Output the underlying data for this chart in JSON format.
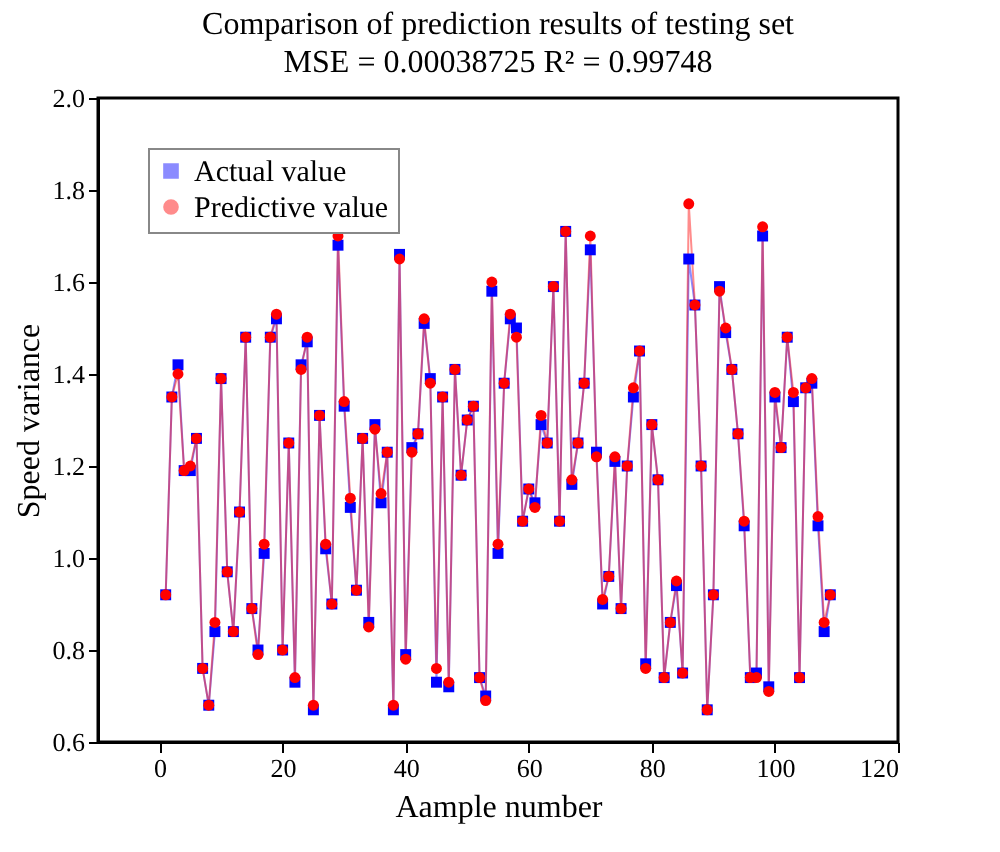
{
  "chart_data": {
    "type": "line",
    "title": "Comparison of prediction results of testing set",
    "subtitle": "MSE = 0.00038725 R² = 0.99748",
    "xlabel": "Aample number",
    "ylabel": "Speed variance",
    "x": [
      1,
      2,
      3,
      4,
      5,
      6,
      7,
      8,
      9,
      10,
      11,
      12,
      13,
      14,
      15,
      16,
      17,
      18,
      19,
      20,
      21,
      22,
      23,
      24,
      25,
      26,
      27,
      28,
      29,
      30,
      31,
      32,
      33,
      34,
      35,
      36,
      37,
      38,
      39,
      40,
      41,
      42,
      43,
      44,
      45,
      46,
      47,
      48,
      49,
      50,
      51,
      52,
      53,
      54,
      55,
      56,
      57,
      58,
      59,
      60,
      61,
      62,
      63,
      64,
      65,
      66,
      67,
      68,
      69,
      70,
      71,
      72,
      73,
      74,
      75,
      76,
      77,
      78,
      79,
      80,
      81,
      82,
      83,
      84,
      85,
      86,
      87,
      88,
      89,
      90,
      91,
      92,
      93,
      94,
      95,
      96,
      97,
      98,
      99,
      100,
      101,
      102,
      103,
      104,
      105,
      106,
      107,
      108,
      109
    ],
    "series": [
      {
        "name": "Actual value",
        "color": "#0000ff",
        "marker": "square",
        "values": [
          0.92,
          1.35,
          1.42,
          1.19,
          1.19,
          1.26,
          0.76,
          0.68,
          0.84,
          1.39,
          0.97,
          0.84,
          1.1,
          1.48,
          0.89,
          0.8,
          1.01,
          1.48,
          1.52,
          0.8,
          1.25,
          0.73,
          1.42,
          1.47,
          0.67,
          1.31,
          1.02,
          0.9,
          1.68,
          1.33,
          1.11,
          0.93,
          1.26,
          0.86,
          1.29,
          1.12,
          1.23,
          0.67,
          1.66,
          0.79,
          1.24,
          1.27,
          1.51,
          1.39,
          0.73,
          1.35,
          0.72,
          1.41,
          1.18,
          1.3,
          1.33,
          0.74,
          0.7,
          1.58,
          1.01,
          1.38,
          1.52,
          1.5,
          1.08,
          1.15,
          1.12,
          1.29,
          1.25,
          1.59,
          1.08,
          1.71,
          1.16,
          1.25,
          1.38,
          1.67,
          1.23,
          0.9,
          0.96,
          1.21,
          0.89,
          1.2,
          1.35,
          1.45,
          0.77,
          1.29,
          1.17,
          0.74,
          0.86,
          0.94,
          0.75,
          1.65,
          1.55,
          1.2,
          0.67,
          0.92,
          1.59,
          1.49,
          1.41,
          1.27,
          1.07,
          0.74,
          0.75,
          1.7,
          0.72,
          1.35,
          1.24,
          1.48,
          1.34,
          0.74,
          1.37,
          1.38,
          1.07,
          0.84,
          0.92
        ]
      },
      {
        "name": "Predictive value",
        "color": "#ff0000",
        "marker": "circle",
        "values": [
          0.92,
          1.35,
          1.4,
          1.19,
          1.2,
          1.26,
          0.76,
          0.68,
          0.86,
          1.39,
          0.97,
          0.84,
          1.1,
          1.48,
          0.89,
          0.79,
          1.03,
          1.48,
          1.53,
          0.8,
          1.25,
          0.74,
          1.41,
          1.48,
          0.68,
          1.31,
          1.03,
          0.9,
          1.7,
          1.34,
          1.13,
          0.93,
          1.26,
          0.85,
          1.28,
          1.14,
          1.23,
          0.68,
          1.65,
          0.78,
          1.23,
          1.27,
          1.52,
          1.38,
          0.76,
          1.35,
          0.73,
          1.41,
          1.18,
          1.3,
          1.33,
          0.74,
          0.69,
          1.6,
          1.03,
          1.38,
          1.53,
          1.48,
          1.08,
          1.15,
          1.11,
          1.31,
          1.25,
          1.59,
          1.08,
          1.71,
          1.17,
          1.25,
          1.38,
          1.7,
          1.22,
          0.91,
          0.96,
          1.22,
          0.89,
          1.2,
          1.37,
          1.45,
          0.76,
          1.29,
          1.17,
          0.74,
          0.86,
          0.95,
          0.75,
          1.77,
          1.55,
          1.2,
          0.67,
          0.92,
          1.58,
          1.5,
          1.41,
          1.27,
          1.08,
          0.74,
          0.74,
          1.72,
          0.71,
          1.36,
          1.24,
          1.48,
          1.36,
          0.74,
          1.37,
          1.39,
          1.09,
          0.86,
          0.92
        ]
      }
    ],
    "xlim": [
      -10,
      120
    ],
    "xticks": [
      0,
      20,
      40,
      60,
      80,
      100,
      120
    ],
    "ylim": [
      0.6,
      2.0
    ],
    "yticks": [
      0.6,
      0.8,
      {
        "value": 1,
        "label": "1.0"
      },
      1.2,
      1.4,
      1.6,
      1.8,
      {
        "value": 2,
        "label": "2.0"
      }
    ],
    "grid": false,
    "legend": "top left",
    "line_style": "solid"
  }
}
